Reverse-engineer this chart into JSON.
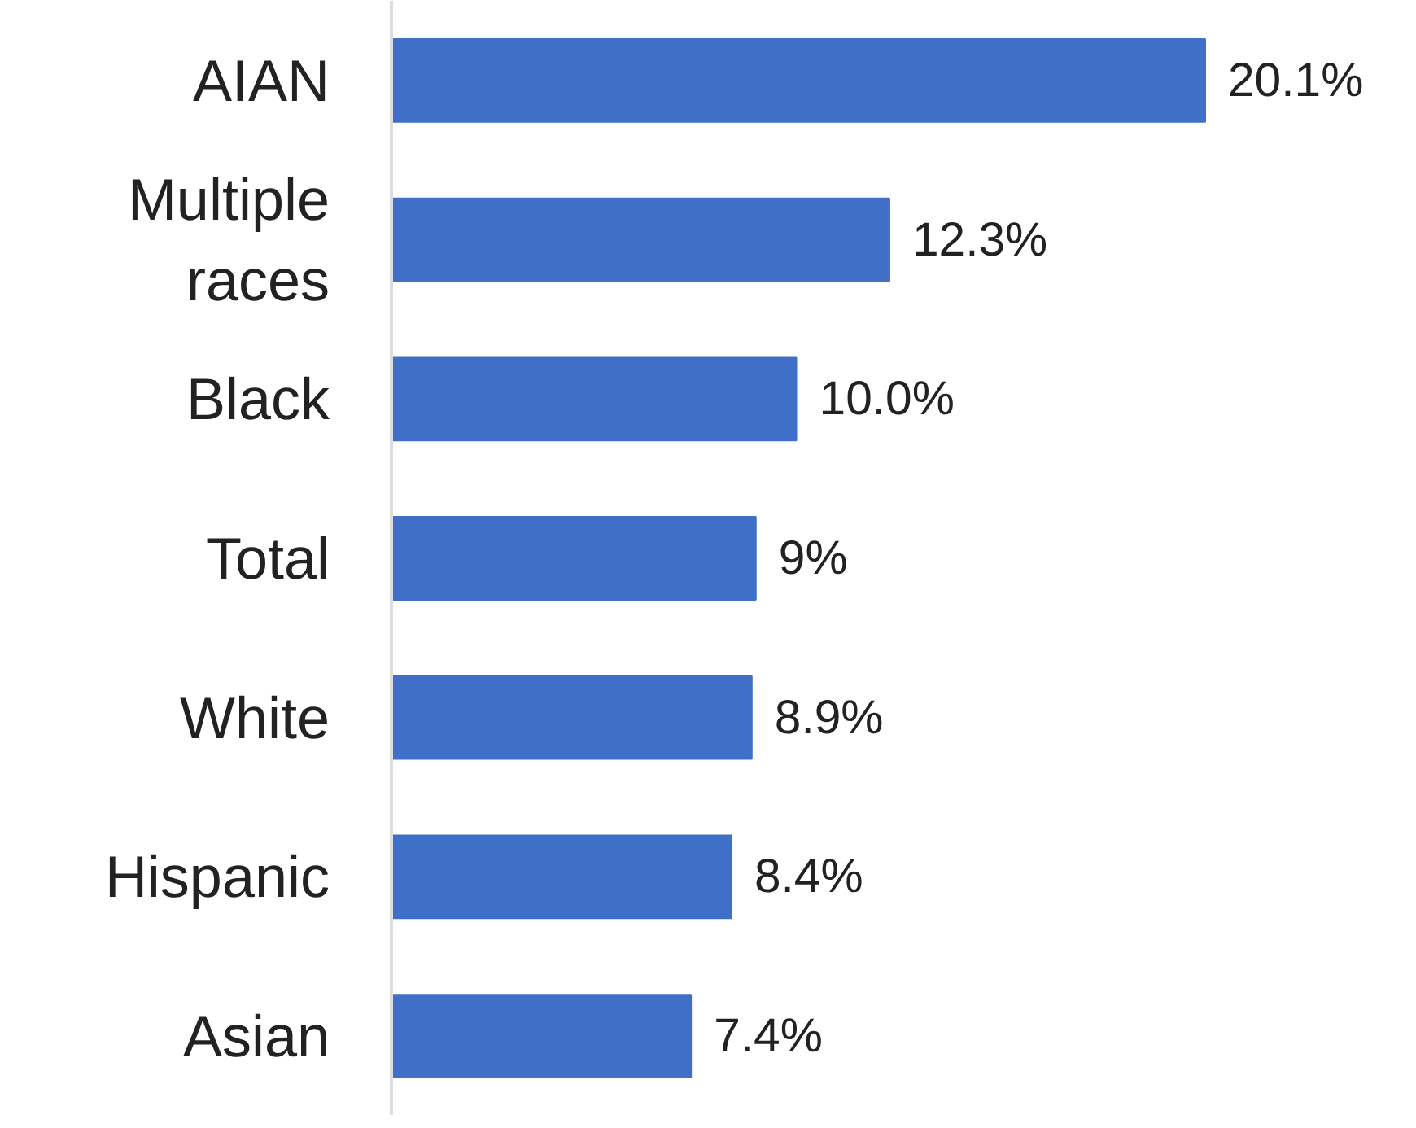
{
  "chart_data": {
    "type": "bar",
    "orientation": "horizontal",
    "categories": [
      "AIAN",
      "Multiple races",
      "Black",
      "Total",
      "White",
      "Hispanic",
      "Asian"
    ],
    "values": [
      20.1,
      12.3,
      10.0,
      9,
      8.9,
      8.4,
      7.4
    ],
    "value_labels": [
      "20.1%",
      "12.3%",
      "10.0%",
      "9%",
      "8.9%",
      "8.4%",
      "7.4%"
    ],
    "color": "#3f6fc6"
  }
}
